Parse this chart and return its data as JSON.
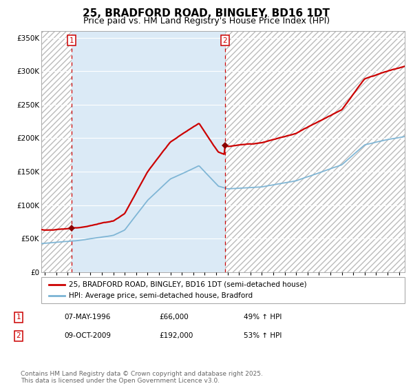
{
  "title": "25, BRADFORD ROAD, BINGLEY, BD16 1DT",
  "subtitle": "Price paid vs. HM Land Registry's House Price Index (HPI)",
  "ylabel_ticks": [
    "£0",
    "£50K",
    "£100K",
    "£150K",
    "£200K",
    "£250K",
    "£300K",
    "£350K"
  ],
  "ytick_vals": [
    0,
    50000,
    100000,
    150000,
    200000,
    250000,
    300000,
    350000
  ],
  "ylim": [
    0,
    360000
  ],
  "xlim_start": 1993.7,
  "xlim_end": 2025.5,
  "hpi_color": "#7ab3d4",
  "price_color": "#cc0000",
  "marker_color": "#8b0000",
  "bg_color": "#dbeaf6",
  "grid_color": "#ffffff",
  "vline_color": "#cc0000",
  "sale1_year": 1996.36,
  "sale1_price": 66000,
  "sale1_label": "1",
  "sale1_date": "07-MAY-1996",
  "sale1_hpi_pct": "49% ↑ HPI",
  "sale2_year": 2009.77,
  "sale2_price": 192000,
  "sale2_label": "2",
  "sale2_date": "09-OCT-2009",
  "sale2_hpi_pct": "53% ↑ HPI",
  "legend_label_red": "25, BRADFORD ROAD, BINGLEY, BD16 1DT (semi-detached house)",
  "legend_label_blue": "HPI: Average price, semi-detached house, Bradford",
  "footnote": "Contains HM Land Registry data © Crown copyright and database right 2025.\nThis data is licensed under the Open Government Licence v3.0.",
  "title_fontsize": 11,
  "subtitle_fontsize": 9,
  "tick_fontsize": 7.5,
  "legend_fontsize": 7.5,
  "footnote_fontsize": 6.5
}
